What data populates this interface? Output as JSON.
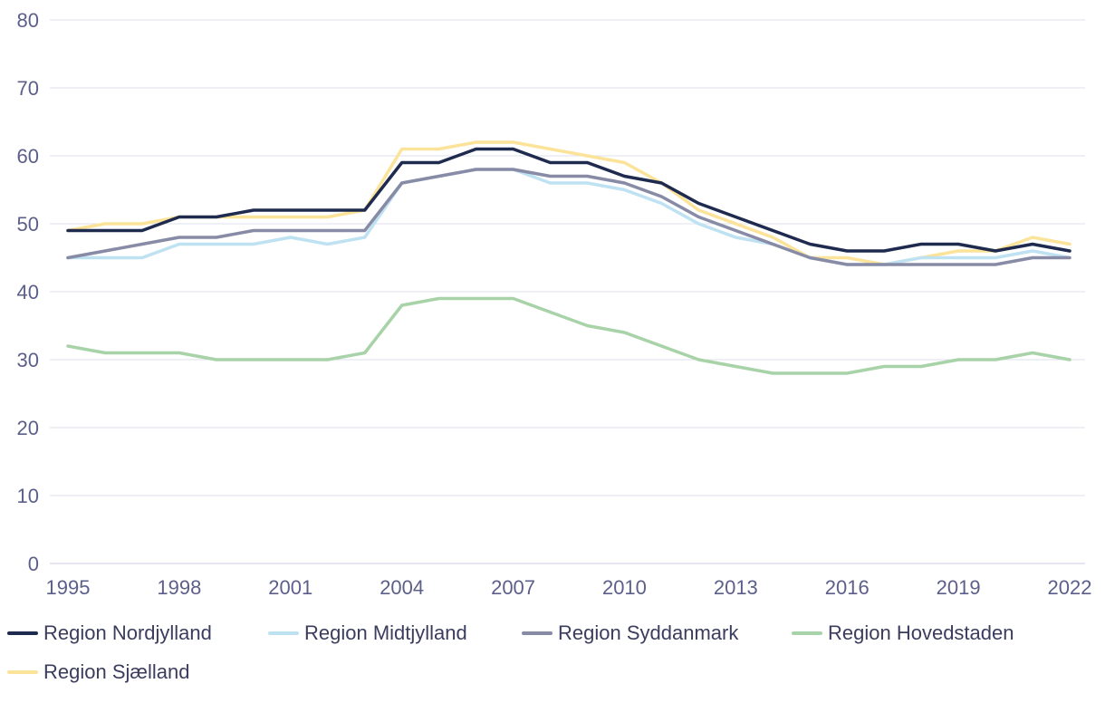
{
  "chart_data": {
    "type": "line",
    "title": "",
    "xlabel": "",
    "ylabel": "",
    "ylim": [
      0,
      80
    ],
    "yticks": [
      "0",
      "10",
      "20",
      "30",
      "40",
      "50",
      "60",
      "70",
      "80"
    ],
    "x": [
      1995,
      1996,
      1997,
      1998,
      1999,
      2000,
      2001,
      2002,
      2003,
      2004,
      2005,
      2006,
      2007,
      2008,
      2009,
      2010,
      2011,
      2012,
      2013,
      2014,
      2015,
      2016,
      2017,
      2018,
      2019,
      2020,
      2021,
      2022
    ],
    "xticks": [
      "1995",
      "1998",
      "2001",
      "2004",
      "2007",
      "2010",
      "2013",
      "2016",
      "2019",
      "2022"
    ],
    "legend_position": "bottom",
    "series": [
      {
        "name": "Region Sjælland",
        "color": "#fbe39a",
        "values": [
          49,
          50,
          50,
          51,
          51,
          51,
          51,
          51,
          52,
          61,
          61,
          62,
          62,
          61,
          60,
          59,
          56,
          52,
          50,
          48,
          45,
          45,
          44,
          45,
          46,
          46,
          48,
          47
        ]
      },
      {
        "name": "Region Midtjylland",
        "color": "#bfe2f3",
        "values": [
          45,
          45,
          45,
          47,
          47,
          47,
          48,
          47,
          48,
          56,
          57,
          58,
          58,
          56,
          56,
          55,
          53,
          50,
          48,
          47,
          45,
          44,
          44,
          45,
          45,
          45,
          46,
          45
        ]
      },
      {
        "name": "Region Syddanmark",
        "color": "#888ba6",
        "values": [
          45,
          46,
          47,
          48,
          48,
          49,
          49,
          49,
          49,
          56,
          57,
          58,
          58,
          57,
          57,
          56,
          54,
          51,
          49,
          47,
          45,
          44,
          44,
          44,
          44,
          44,
          45,
          45
        ]
      },
      {
        "name": "Region Hovedstaden",
        "color": "#a8d2a7",
        "values": [
          32,
          31,
          31,
          31,
          30,
          30,
          30,
          30,
          31,
          38,
          39,
          39,
          39,
          37,
          35,
          34,
          32,
          30,
          29,
          28,
          28,
          28,
          29,
          29,
          30,
          30,
          31,
          30
        ]
      },
      {
        "name": "Region Nordjylland",
        "color": "#1f2a4f",
        "values": [
          49,
          49,
          49,
          51,
          51,
          52,
          52,
          52,
          52,
          59,
          59,
          61,
          61,
          59,
          59,
          57,
          56,
          53,
          51,
          49,
          47,
          46,
          46,
          47,
          47,
          46,
          47,
          46
        ]
      }
    ],
    "legend": [
      "Region Nordjylland",
      "Region Midtjylland",
      "Region Syddanmark",
      "Region Hovedstaden",
      "Region Sjælland"
    ]
  }
}
